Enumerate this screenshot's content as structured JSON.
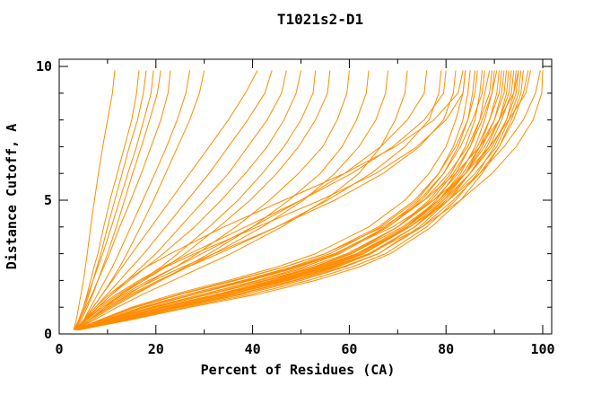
{
  "title": "T1021s2-D1",
  "colors": {
    "curve": "#ff8c00",
    "axis": "#000000",
    "background": "#ffffff"
  },
  "chart_data": {
    "type": "line",
    "title": "T1021s2-D1",
    "xlabel": "Percent of Residues (CA)",
    "ylabel": "Distance Cutoff, A",
    "xlim": [
      0,
      102
    ],
    "ylim": [
      0,
      10.3
    ],
    "x_major_ticks": [
      0,
      20,
      40,
      60,
      80,
      100
    ],
    "x_minor_ticks": [
      10,
      30,
      50,
      70,
      90
    ],
    "y_major_ticks": [
      0,
      5,
      10
    ],
    "y_minor_ticks": [
      1,
      2,
      3,
      4,
      6,
      7,
      8,
      9
    ],
    "grid": false,
    "legend": "none",
    "curve_color": "#ff8c00",
    "cutoffs": [
      0.15,
      0.5,
      1,
      1.5,
      2,
      2.5,
      3,
      4,
      5,
      6,
      7,
      8,
      9,
      9.85
    ],
    "series": [
      [
        3,
        3.5,
        4,
        4.5,
        5,
        5.4,
        5.8,
        6.5,
        7.3,
        8.1,
        9,
        10,
        11,
        11.5
      ],
      [
        3,
        4,
        5,
        5.8,
        6.5,
        7.2,
        8,
        9.2,
        10.5,
        12,
        13.5,
        15,
        16,
        16.5
      ],
      [
        3.2,
        4.2,
        5.3,
        6.2,
        7,
        7.8,
        8.6,
        10,
        11.5,
        13,
        14.5,
        16.2,
        17.4,
        18
      ],
      [
        3,
        4,
        5,
        6,
        7,
        8,
        9,
        10.8,
        12.5,
        14.2,
        16,
        17.5,
        19,
        19.5
      ],
      [
        3.2,
        4.5,
        5.8,
        7,
        8,
        9,
        10,
        11.8,
        13.5,
        15.2,
        17,
        18.7,
        20.3,
        21
      ],
      [
        3,
        4.2,
        5.5,
        6.8,
        8,
        9.2,
        10.4,
        12.5,
        14.8,
        17,
        19,
        21,
        22.5,
        23
      ],
      [
        3.5,
        5,
        6.5,
        8,
        9.5,
        11,
        12.3,
        14.8,
        17.3,
        19.8,
        22.2,
        24.4,
        26.2,
        27
      ],
      [
        3.2,
        5,
        7,
        9,
        10.8,
        12.5,
        14,
        16.8,
        19.5,
        22,
        24.5,
        27,
        29,
        30
      ],
      [
        3.5,
        5,
        7,
        9,
        11,
        13,
        15,
        19,
        23,
        27,
        31,
        35,
        38.5,
        41
      ],
      [
        3.2,
        5,
        7.5,
        10,
        12.5,
        15,
        17.5,
        22,
        26.5,
        31,
        35,
        39,
        42.5,
        44
      ],
      [
        3.5,
        5.5,
        8,
        11,
        14,
        17,
        20,
        25,
        30,
        35,
        39,
        43,
        46,
        47
      ],
      [
        3.2,
        5.2,
        8,
        11,
        14.5,
        18,
        21.5,
        28,
        33.5,
        38.5,
        43,
        46.5,
        49,
        50
      ],
      [
        3.5,
        6,
        9.5,
        13,
        17,
        21,
        24.5,
        31,
        37,
        42,
        46.5,
        50,
        52.5,
        53
      ],
      [
        3.2,
        5.5,
        9,
        13,
        17.5,
        22,
        26,
        33,
        39.5,
        45,
        49.5,
        53,
        55.5,
        56
      ],
      [
        3.5,
        6,
        10,
        14.5,
        19,
        24,
        28.5,
        36.5,
        43.5,
        49.5,
        54.5,
        57.5,
        59.5,
        60
      ],
      [
        3.5,
        6.5,
        11,
        16,
        21,
        26,
        31,
        40,
        47.5,
        54,
        58.5,
        61.5,
        63.5,
        64
      ],
      [
        3.2,
        6,
        10.5,
        15.5,
        21,
        26.5,
        32,
        42,
        50.5,
        57,
        62,
        65.5,
        67.5,
        68
      ],
      [
        3.5,
        7,
        12,
        17.5,
        23.5,
        29.5,
        35.5,
        46,
        55,
        62,
        66.5,
        69.5,
        71.5,
        72
      ],
      [
        3.2,
        5.5,
        9,
        13.5,
        18.5,
        24,
        29.5,
        40,
        50,
        59,
        66.5,
        72,
        75.5,
        76
      ],
      [
        3.5,
        6,
        10,
        15,
        20.5,
        26.5,
        33,
        45,
        55.5,
        64.5,
        71.5,
        76.5,
        78.5,
        79
      ],
      [
        3.2,
        5,
        8,
        12,
        16.5,
        21.5,
        27,
        38.5,
        50,
        60.5,
        69,
        75.5,
        79.5,
        80
      ],
      [
        3.5,
        6,
        9.5,
        14,
        19.5,
        25.5,
        32,
        45,
        57,
        67,
        74.5,
        79.5,
        81.5,
        82
      ],
      [
        3.2,
        5.5,
        8.5,
        12.5,
        17,
        22,
        28,
        41,
        54,
        65.5,
        74,
        80,
        83.5,
        84
      ],
      [
        3.5,
        5,
        7.5,
        10.5,
        14,
        18,
        23,
        34,
        46.5,
        59,
        69.5,
        77.5,
        82.5,
        83.5
      ],
      [
        3.5,
        8,
        15,
        24,
        35,
        45,
        53,
        64,
        71.5,
        76.5,
        80,
        82,
        83.5,
        84
      ],
      [
        3.5,
        9,
        17,
        27,
        38,
        48,
        56,
        66.5,
        74,
        78.5,
        81.5,
        83.5,
        84.5,
        85
      ],
      [
        4,
        10,
        19,
        30,
        41,
        50.5,
        58,
        68,
        75,
        79.5,
        82.5,
        84.5,
        85.5,
        86
      ],
      [
        3.5,
        8.5,
        16,
        25.5,
        36.5,
        46.5,
        55,
        66,
        73.5,
        78.5,
        82,
        84.5,
        86,
        86.5
      ],
      [
        4,
        11,
        21,
        33,
        44,
        53,
        60.5,
        70,
        76.5,
        81,
        84,
        86,
        87,
        87.5
      ],
      [
        3.5,
        9.5,
        18,
        28.5,
        39.5,
        49.5,
        57.5,
        67.5,
        74.5,
        79.5,
        83,
        85.5,
        87.5,
        88
      ],
      [
        4,
        12,
        23,
        35.5,
        46.5,
        55.5,
        63,
        72,
        78,
        82,
        85,
        87,
        88,
        89
      ],
      [
        3.5,
        9,
        17.5,
        28,
        39,
        49,
        57,
        68,
        75.5,
        80.5,
        84.5,
        87,
        89,
        89.5
      ],
      [
        4,
        11.5,
        22,
        34,
        45.5,
        55,
        62.5,
        72,
        78.5,
        83,
        86,
        88,
        89.5,
        90
      ],
      [
        3.5,
        10,
        20,
        31.5,
        43,
        52.5,
        60,
        70,
        77,
        81.5,
        85,
        87.5,
        89.5,
        90.5
      ],
      [
        4,
        12.5,
        24,
        37,
        48.5,
        57.5,
        64.5,
        73.5,
        79.5,
        84,
        87,
        89,
        90.5,
        91
      ],
      [
        3.5,
        9.5,
        19,
        30,
        41.5,
        51.5,
        59.5,
        70,
        77.5,
        82.5,
        86.5,
        89,
        91,
        91.5
      ],
      [
        4,
        11,
        21.5,
        33.5,
        45,
        54.5,
        62,
        72,
        79,
        84,
        87.5,
        90,
        91.5,
        92
      ],
      [
        3.5,
        10.5,
        21,
        33,
        44.5,
        54,
        61.5,
        71.5,
        78.5,
        83.5,
        87,
        90,
        92,
        92.5
      ],
      [
        4,
        13,
        25,
        38.5,
        50,
        59,
        66,
        74.5,
        80.5,
        85,
        88.5,
        91,
        92.5,
        93
      ],
      [
        3.5,
        10,
        20,
        31,
        42.5,
        52.5,
        60.5,
        71,
        78.5,
        84,
        88,
        91,
        93,
        93.5
      ],
      [
        4,
        12,
        23.5,
        36,
        47.5,
        57,
        64.5,
        73.5,
        80,
        85,
        89,
        91.5,
        93.5,
        94
      ],
      [
        3.5,
        11,
        22,
        34.5,
        46,
        55.5,
        63,
        72.5,
        79.5,
        85,
        89.5,
        92.5,
        94,
        94.5
      ],
      [
        4,
        13.5,
        26,
        40,
        51.5,
        60.5,
        67.5,
        76,
        82,
        86.5,
        90,
        92.5,
        94.5,
        95
      ],
      [
        3.5,
        11.5,
        23,
        35.5,
        47,
        56.5,
        64,
        73.5,
        80.5,
        86,
        90.5,
        93,
        95,
        95.5
      ],
      [
        4,
        14,
        27,
        41.5,
        53,
        62,
        68.5,
        77,
        83,
        87.5,
        91,
        93.5,
        95.5,
        96
      ],
      [
        4,
        12.5,
        24.5,
        37.5,
        49,
        58.5,
        66,
        75,
        81.5,
        87,
        91,
        94,
        96,
        97
      ],
      [
        3.5,
        8,
        15.5,
        25,
        36,
        46.5,
        55,
        67,
        75.5,
        82,
        87,
        91,
        94,
        95
      ],
      [
        4,
        9,
        17,
        27,
        38.5,
        48.5,
        57,
        69,
        77.5,
        84,
        89,
        93,
        96.5,
        97.5
      ],
      [
        4,
        10,
        19.5,
        31,
        43,
        53.5,
        61.5,
        72.5,
        80.5,
        87,
        92,
        96,
        98.5,
        99.5
      ],
      [
        4,
        11,
        21,
        33,
        45.5,
        56,
        64,
        75,
        83,
        89.5,
        94.5,
        98,
        99.8,
        100
      ]
    ]
  }
}
